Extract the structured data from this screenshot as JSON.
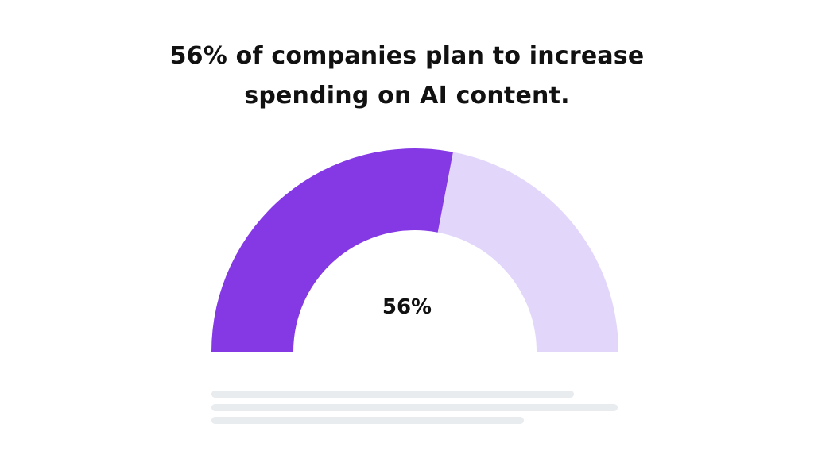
{
  "chart_data": {
    "type": "gauge",
    "title_lines": [
      "56% of companies plan to increase",
      "spending on AI content."
    ],
    "value": 56,
    "max": 100,
    "value_label": "56%",
    "colors": {
      "filled": "#8439e4",
      "remaining": "#e2d7fa",
      "text": "#111111",
      "placeholder": "#e8ecef"
    }
  }
}
